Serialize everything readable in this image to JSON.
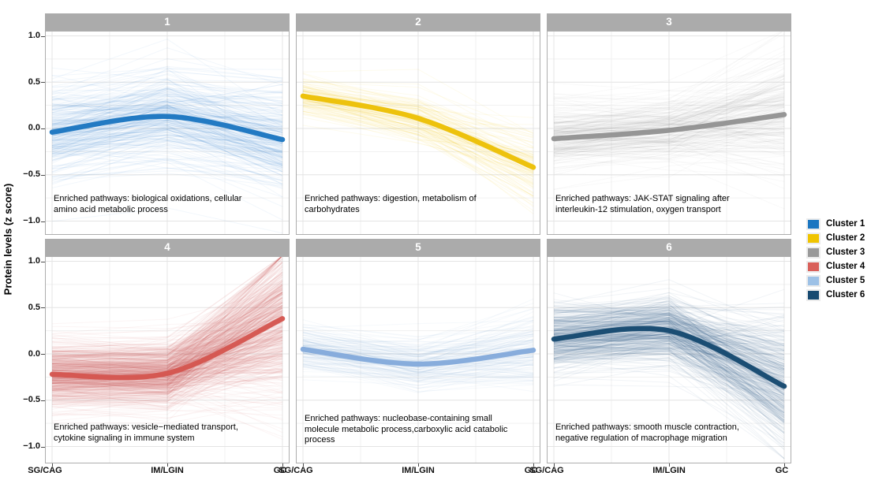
{
  "chart_data": {
    "type": "line",
    "title": "",
    "ylabel": "Protein levels (z score)",
    "xlabel": "",
    "categories": [
      "SG/CAG",
      "IM/LGIN",
      "GC"
    ],
    "yticks": [
      1.0,
      0.5,
      0.0,
      -0.5,
      -1.0
    ],
    "ytick_labels": [
      "1.0",
      "0.5",
      "0.0",
      "−0.5",
      "−1.0"
    ],
    "ylim": [
      -1.15,
      1.07
    ],
    "grid": true,
    "legend_position": "right",
    "panel_colors": {
      "strip_bg": "#ababab",
      "strip_text": "#ffffff",
      "grid_major": "#e4e4e4",
      "grid_minor": "#f1f1f1",
      "panel_border": "#adadad"
    },
    "facets": [
      {
        "strip_label": "1",
        "cluster": "Cluster 1",
        "color": "#1b76c1",
        "trend": [
          -0.04,
          0.13,
          -0.12
        ],
        "annotation": "Enriched pathways: biological oxidations, cellular\namino acid metabolic process",
        "lines": {
          "n": 260,
          "corr": [
            0.22,
            0.22,
            0.24
          ],
          "ind": [
            0.1,
            0.13,
            0.16
          ],
          "opacity": 0.055
        }
      },
      {
        "strip_label": "2",
        "cluster": "Cluster 2",
        "color": "#ecc004",
        "trend": [
          0.35,
          0.11,
          -0.42
        ],
        "annotation": "Enriched pathways: digestion, metabolism of\ncarbohydrates",
        "lines": {
          "n": 110,
          "corr": [
            0.1,
            0.12,
            0.14
          ],
          "ind": [
            0.05,
            0.08,
            0.16
          ],
          "opacity": 0.07
        }
      },
      {
        "strip_label": "3",
        "cluster": "Cluster 3",
        "color": "#929292",
        "trend": [
          -0.11,
          -0.02,
          0.15
        ],
        "annotation": "Enriched pathways: JAK-STAT signaling after\ninterleukin-12 stimulation, oxygen transport",
        "lines": {
          "n": 220,
          "corr": [
            0.17,
            0.15,
            0.2
          ],
          "ind": [
            0.07,
            0.1,
            0.26
          ],
          "opacity": 0.05
        }
      },
      {
        "strip_label": "4",
        "cluster": "Cluster 4",
        "color": "#d4554f",
        "trend": [
          -0.22,
          -0.21,
          0.38
        ],
        "annotation": "Enriched pathways: vesicle−mediated transport,\ncytokine signaling in immune system",
        "lines": {
          "n": 600,
          "corr": [
            0.17,
            0.17,
            0.12
          ],
          "ind": [
            0.06,
            0.06,
            0.38
          ],
          "opacity": 0.06
        }
      },
      {
        "strip_label": "5",
        "cluster": "Cluster 5",
        "color": "#83aadb",
        "trend": [
          0.05,
          -0.11,
          0.04
        ],
        "annotation": "Enriched pathways: nucleobase-containing small\nmolecule metabolic process,carboxylic acid catabolic\nprocess",
        "lines": {
          "n": 140,
          "corr": [
            0.13,
            0.13,
            0.15
          ],
          "ind": [
            0.06,
            0.09,
            0.15
          ],
          "opacity": 0.07
        }
      },
      {
        "strip_label": "6",
        "cluster": "Cluster 6",
        "color": "#15496f",
        "trend": [
          0.16,
          0.25,
          -0.35
        ],
        "annotation": "Enriched pathways: smooth muscle contraction,\nnegative regulation of macrophage migration",
        "lines": {
          "n": 380,
          "corr": [
            0.17,
            0.17,
            0.18
          ],
          "ind": [
            0.07,
            0.1,
            0.3
          ],
          "opacity": 0.06
        }
      }
    ],
    "legend": {
      "items": [
        {
          "label": "Cluster 1",
          "color": "#1b76c1"
        },
        {
          "label": "Cluster 2",
          "color": "#f0c400"
        },
        {
          "label": "Cluster 3",
          "color": "#999999"
        },
        {
          "label": "Cluster 4",
          "color": "#d9605a"
        },
        {
          "label": "Cluster 5",
          "color": "#9dc1e6"
        },
        {
          "label": "Cluster 6",
          "color": "#174a71"
        }
      ]
    }
  }
}
